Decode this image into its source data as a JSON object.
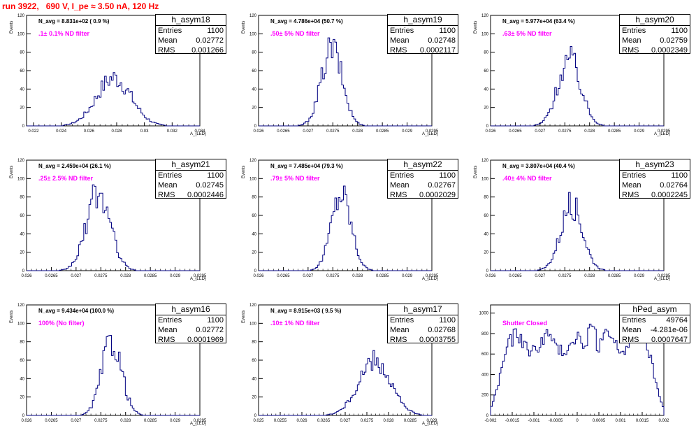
{
  "canvas_title": "run 3922,   690 V, I_pe ≈ 3.50 nA, 120 Hz",
  "colors": {
    "histogram": "#000080",
    "annotation": "#ff00ff",
    "title": "#ff0000"
  },
  "chart_data": [
    {
      "type": "histogram",
      "name": "h_asym18",
      "navg": "N_avg = 8.831e+02 ( 0.9 %)",
      "filter": ".1± 0.1% ND filter",
      "entries": "1100",
      "mean": "0.02772",
      "rms": "0.001266",
      "xlim": [
        0.0215,
        0.034
      ],
      "xticks": [
        0.022,
        0.024,
        0.026,
        0.028,
        0.03,
        0.032,
        0.034
      ],
      "xticklabels": [
        "0.022",
        "0.024",
        "0.026",
        "0.028",
        "0.03",
        "0.032",
        "0.034"
      ],
      "ylim": [
        0,
        120
      ],
      "yticks": [
        0,
        20,
        40,
        60,
        80,
        100,
        120
      ],
      "xlabel": "A_{LED}",
      "ylabel": "Events",
      "peak": 52,
      "center": 0.0278,
      "sigma": 0.00125,
      "nbins": 100
    },
    {
      "type": "histogram",
      "name": "h_asym19",
      "navg": "N_avg = 4.786e+04 (50.7 %)",
      "filter": ".50± 5% ND filter",
      "entries": "1100",
      "mean": "0.02748",
      "rms": "0.0002117",
      "xlim": [
        0.026,
        0.0295
      ],
      "xticks": [
        0.026,
        0.0265,
        0.027,
        0.0275,
        0.028,
        0.0285,
        0.029,
        0.0295
      ],
      "xticklabels": [
        "0.026",
        "0.0265",
        "0.027",
        "0.0275",
        "0.028",
        "0.0285",
        "0.029",
        "0.0295"
      ],
      "ylim": [
        0,
        120
      ],
      "yticks": [
        0,
        20,
        40,
        60,
        80,
        100,
        120
      ],
      "xlabel": "A_{LED}",
      "ylabel": "Events",
      "peak": 84,
      "center": 0.02748,
      "sigma": 0.00021,
      "nbins": 100
    },
    {
      "type": "histogram",
      "name": "h_asym20",
      "navg": "N_avg = 5.977e+04 (63.4 %)",
      "filter": ".63± 5% ND filter",
      "entries": "1100",
      "mean": "0.02759",
      "rms": "0.0002349",
      "xlim": [
        0.026,
        0.0295
      ],
      "xticks": [
        0.026,
        0.0265,
        0.027,
        0.0275,
        0.028,
        0.0285,
        0.029,
        0.0295
      ],
      "xticklabels": [
        "0.026",
        "0.0265",
        "0.027",
        "0.0275",
        "0.028",
        "0.0285",
        "0.029",
        "0.0295"
      ],
      "ylim": [
        0,
        120
      ],
      "yticks": [
        0,
        20,
        40,
        60,
        80,
        100,
        120
      ],
      "xlabel": "A_{LED}",
      "ylabel": "Events",
      "peak": 73,
      "center": 0.02759,
      "sigma": 0.00023,
      "nbins": 100
    },
    {
      "type": "histogram",
      "name": "h_asym21",
      "navg": "N_avg = 2.459e+04 (26.1 %)",
      "filter": ".25± 2.5% ND filter",
      "entries": "1100",
      "mean": "0.02745",
      "rms": "0.0002446",
      "xlim": [
        0.026,
        0.0295
      ],
      "xticks": [
        0.026,
        0.0265,
        0.027,
        0.0275,
        0.028,
        0.0285,
        0.029,
        0.0295
      ],
      "xticklabels": [
        "0.026",
        "0.0265",
        "0.027",
        "0.0275",
        "0.028",
        "0.0285",
        "0.029",
        "0.0295"
      ],
      "ylim": [
        0,
        120
      ],
      "yticks": [
        0,
        20,
        40,
        60,
        80,
        100,
        120
      ],
      "xlabel": "A_{LED}",
      "ylabel": "Events",
      "peak": 84,
      "center": 0.02745,
      "sigma": 0.00024,
      "nbins": 100
    },
    {
      "type": "histogram",
      "name": "h_asym22",
      "navg": "N_avg = 7.485e+04 (79.3 %)",
      "filter": ".79± 5% ND filter",
      "entries": "1100",
      "mean": "0.02767",
      "rms": "0.0002029",
      "xlim": [
        0.026,
        0.0295
      ],
      "xticks": [
        0.026,
        0.0265,
        0.027,
        0.0275,
        0.028,
        0.0285,
        0.029,
        0.0295
      ],
      "xticklabels": [
        "0.026",
        "0.0265",
        "0.027",
        "0.0275",
        "0.028",
        "0.0285",
        "0.029",
        "0.0295"
      ],
      "ylim": [
        0,
        120
      ],
      "yticks": [
        0,
        20,
        40,
        60,
        80,
        100,
        120
      ],
      "xlabel": "A_{LED}",
      "ylabel": "Events",
      "peak": 84,
      "center": 0.02767,
      "sigma": 0.0002,
      "nbins": 100
    },
    {
      "type": "histogram",
      "name": "h_asym23",
      "navg": "N_avg = 3.807e+04 (40.4 %)",
      "filter": ".40± 4% ND filter",
      "entries": "1100",
      "mean": "0.02764",
      "rms": "0.0002245",
      "xlim": [
        0.026,
        0.0295
      ],
      "xticks": [
        0.026,
        0.0265,
        0.027,
        0.0275,
        0.028,
        0.0285,
        0.029,
        0.0295
      ],
      "xticklabels": [
        "0.026",
        "0.0265",
        "0.027",
        "0.0275",
        "0.028",
        "0.0285",
        "0.029",
        "0.0295"
      ],
      "ylim": [
        0,
        120
      ],
      "yticks": [
        0,
        20,
        40,
        60,
        80,
        100,
        120
      ],
      "xlabel": "A_{LED}",
      "ylabel": "Events",
      "peak": 72,
      "center": 0.02764,
      "sigma": 0.00022,
      "nbins": 100
    },
    {
      "type": "histogram",
      "name": "h_asym16",
      "navg": "N_avg = 9.434e+04 (100.0 %)",
      "filter": "100% (No filter)",
      "entries": "1100",
      "mean": "0.02772",
      "rms": "0.0001969",
      "xlim": [
        0.026,
        0.0295
      ],
      "xticks": [
        0.026,
        0.0265,
        0.027,
        0.0275,
        0.028,
        0.0285,
        0.029,
        0.0295
      ],
      "xticklabels": [
        "0.026",
        "0.0265",
        "0.027",
        "0.0275",
        "0.028",
        "0.0285",
        "0.029",
        "0.0295"
      ],
      "ylim": [
        0,
        120
      ],
      "yticks": [
        0,
        20,
        40,
        60,
        80,
        100,
        120
      ],
      "xlabel": "A_{LED}",
      "ylabel": "Events",
      "peak": 81,
      "center": 0.02772,
      "sigma": 0.0002,
      "nbins": 100
    },
    {
      "type": "histogram",
      "name": "h_asym17",
      "navg": "N_avg = 8.915e+03 ( 9.5 %)",
      "filter": ".10± 1% ND filter",
      "entries": "1100",
      "mean": "0.02768",
      "rms": "0.0003755",
      "xlim": [
        0.025,
        0.029
      ],
      "xticks": [
        0.025,
        0.0255,
        0.026,
        0.0265,
        0.027,
        0.0275,
        0.028,
        0.0285,
        0.029
      ],
      "xticklabels": [
        "0.025",
        "0.0255",
        "0.026",
        "0.0265",
        "0.027",
        "0.0275",
        "0.028",
        "0.0285",
        "0.029"
      ],
      "ylim": [
        0,
        120
      ],
      "yticks": [
        0,
        20,
        40,
        60,
        80,
        100,
        120
      ],
      "xlabel": "A_{LED}",
      "ylabel": "Events",
      "peak": 58,
      "center": 0.02768,
      "sigma": 0.00037,
      "nbins": 100
    },
    {
      "type": "histogram",
      "name": "hPed_asym",
      "navg": "",
      "filter": "Shutter Closed",
      "entries": "49764",
      "mean": "-4.281e-06",
      "rms": "0.0007647",
      "xlim": [
        -0.002,
        0.002
      ],
      "xticks": [
        -0.002,
        -0.0015,
        -0.001,
        -0.0005,
        0,
        0.0005,
        0.001,
        0.0015,
        0.002
      ],
      "xticklabels": [
        "-0.002",
        "-0.0015",
        "-0.001",
        "-0.0005",
        "0",
        "0.0005",
        "0.001",
        "0.0015",
        "0.002"
      ],
      "ylim": [
        0,
        1080
      ],
      "yticks": [
        0,
        200,
        400,
        600,
        800,
        1000
      ],
      "xlabel": "",
      "ylabel": "",
      "peak": 1000,
      "center": 0,
      "sigma": 0.00076,
      "nbins": 100,
      "shape": "pedestal"
    }
  ]
}
